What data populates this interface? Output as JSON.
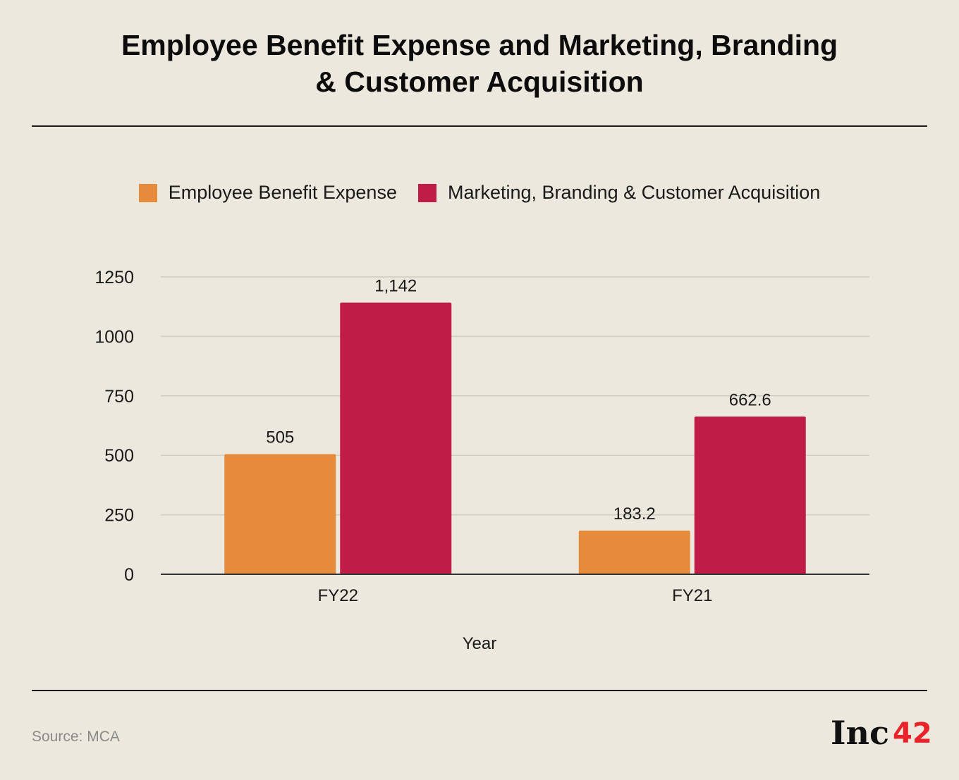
{
  "header": {
    "title_line1": "Employee Benefit Expense and Marketing, Branding",
    "title_line2": "& Customer Acquisition"
  },
  "legend": [
    {
      "label": "Employee Benefit Expense",
      "color": "#e68a3b"
    },
    {
      "label": "Marketing, Branding & Customer Acquisition",
      "color": "#bf1d47"
    }
  ],
  "chart_data": {
    "type": "bar",
    "title": "Employee Benefit Expense and Marketing, Branding & Customer Acquisition",
    "xlabel": "Year",
    "ylabel": "",
    "categories": [
      "FY22",
      "FY21"
    ],
    "series": [
      {
        "name": "Employee Benefit Expense",
        "values": [
          505,
          183.2
        ],
        "labels": [
          "505",
          "183.2"
        ],
        "color": "#e68a3b"
      },
      {
        "name": "Marketing, Branding & Customer Acquisition",
        "values": [
          1142,
          662.6
        ],
        "labels": [
          "1,142",
          "662.6"
        ],
        "color": "#bf1d47"
      }
    ],
    "ylim": [
      0,
      1250
    ],
    "yticks": [
      0,
      250,
      500,
      750,
      1000,
      1250
    ],
    "grid": true,
    "legend_position": "top"
  },
  "footer": {
    "source": "Source: MCA",
    "logo_text": "Inc",
    "logo_number": "42"
  }
}
